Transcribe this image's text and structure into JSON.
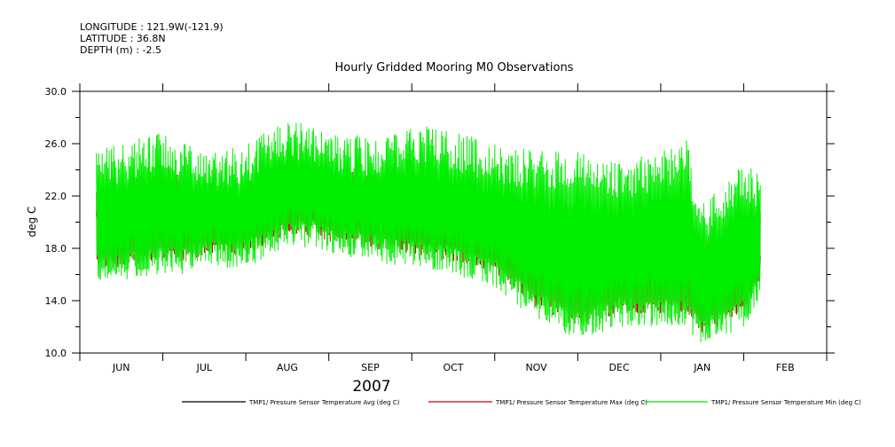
{
  "header": {
    "longitude": "LONGITUDE : 121.9W(-121.9)",
    "latitude": "LATITUDE : 36.8N",
    "depth": "DEPTH (m) : -2.5"
  },
  "chart_data": {
    "type": "line",
    "title": "Hourly Gridded Mooring M0 Observations",
    "xlabel": "2007",
    "ylabel": "deg C",
    "ylim": [
      10,
      30
    ],
    "yticks": [
      10,
      14,
      18,
      22,
      26,
      30
    ],
    "ytick_labels": [
      "10.0",
      "14.0",
      "18.0",
      "22.0",
      "26.0",
      "30.0"
    ],
    "xlim_months": [
      0,
      9
    ],
    "month_labels": [
      "JUN",
      "JUL",
      "AUG",
      "SEP",
      "OCT",
      "NOV",
      "DEC",
      "JAN",
      "FEB"
    ],
    "data_start_month": 0.2,
    "data_end_month": 8.2,
    "colors": {
      "avg": "#000000",
      "max": "#cc0000",
      "min": "#00ee00"
    },
    "series": [
      {
        "name": "TMP1/ Pressure Sensor Temperature Avg (deg C)",
        "key": "avg",
        "x": [
          0.2,
          0.5,
          1.0,
          1.3,
          1.5,
          2.0,
          2.5,
          2.8,
          3.0,
          3.5,
          4.0,
          4.5,
          5.0,
          5.5,
          6.0,
          6.5,
          7.0,
          7.3,
          7.5,
          8.0,
          8.2
        ],
        "values": [
          21.0,
          19.5,
          21.5,
          20.5,
          20.0,
          20.0,
          22.0,
          21.0,
          21.5,
          20.5,
          19.5,
          19.0,
          18.0,
          16.5,
          16.5,
          17.0,
          17.5,
          17.0,
          15.5,
          16.5,
          17.5
        ]
      },
      {
        "name": "TMP1/ Pressure Sensor Temperature Max (deg C)",
        "key": "max",
        "x": [
          0.2,
          0.5,
          1.0,
          1.3,
          1.5,
          2.0,
          2.5,
          2.8,
          3.0,
          3.5,
          4.0,
          4.5,
          5.0,
          5.5,
          6.0,
          6.5,
          7.0,
          7.3,
          7.5,
          8.0,
          8.2
        ],
        "values": [
          24.0,
          24.5,
          25.5,
          24.5,
          24.0,
          24.5,
          26.5,
          26.0,
          25.5,
          25.0,
          26.0,
          25.5,
          24.5,
          24.0,
          24.0,
          23.0,
          24.0,
          25.0,
          20.0,
          23.0,
          22.5
        ]
      },
      {
        "name": "TMP1/ Pressure Sensor Temperature Min (deg C)",
        "key": "min",
        "x": [
          0.2,
          0.5,
          1.0,
          1.3,
          1.5,
          2.0,
          2.5,
          2.8,
          3.0,
          3.5,
          4.0,
          4.5,
          5.0,
          5.5,
          6.0,
          6.5,
          7.0,
          7.3,
          7.5,
          8.0,
          8.2
        ],
        "values": [
          16.5,
          16.5,
          17.0,
          17.0,
          17.5,
          17.5,
          19.0,
          19.0,
          18.5,
          18.0,
          17.5,
          17.0,
          16.0,
          13.5,
          12.0,
          13.0,
          13.0,
          13.0,
          11.5,
          13.0,
          15.0
        ]
      }
    ]
  }
}
